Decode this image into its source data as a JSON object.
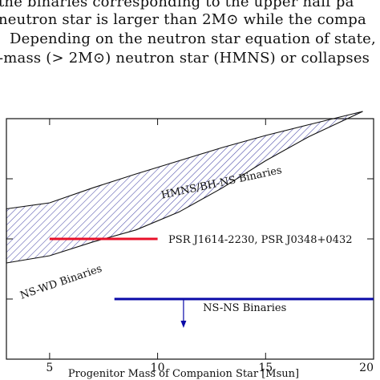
{
  "paper_text": {
    "line1": "the binaries corresponding to the upper half pa",
    "line2": "neutron star is larger than 2M⊙ while the compa",
    "line3": "Depending on the neutron star equation of state,",
    "line4": "-mass (> 2M⊙) neutron star (HMNS) or collapses"
  },
  "chart_data": {
    "type": "area",
    "xlabel": "Progenitor Mass of Companion Star [Msun]",
    "ylabel": "",
    "title": "",
    "xlim": [
      3,
      20
    ],
    "ylim": [
      0,
      4
    ],
    "x_ticks": [
      "5",
      "10",
      "15",
      "20"
    ],
    "hatch_region": {
      "upper": [
        [
          3,
          2.5
        ],
        [
          5,
          2.6
        ],
        [
          7,
          2.85
        ],
        [
          9,
          3.08
        ],
        [
          11,
          3.3
        ],
        [
          13,
          3.52
        ],
        [
          15,
          3.72
        ],
        [
          17,
          3.9
        ],
        [
          19.5,
          4.12
        ]
      ],
      "lower": [
        [
          3,
          1.6
        ],
        [
          5,
          1.72
        ],
        [
          7,
          1.95
        ],
        [
          9,
          2.15
        ],
        [
          11,
          2.45
        ],
        [
          13,
          2.85
        ],
        [
          15,
          3.3
        ],
        [
          17,
          3.7
        ],
        [
          19.5,
          4.12
        ]
      ]
    },
    "lines": [
      {
        "label": "PSR J1614-2230, PSR J0348+0432",
        "color": "#e8102a",
        "x": [
          5,
          10
        ],
        "y": 2.0
      },
      {
        "label": "NS-NS Binaries",
        "color": "#0a0aa8",
        "x": [
          8,
          20
        ],
        "y": 1.0,
        "upper_limit": true,
        "arrow_x": 11.2
      }
    ],
    "annotations": {
      "upper": "HMNS/BH-NS Binaries",
      "lower": "NS-WD Binaries",
      "red": "PSR J1614-2230, PSR J0348+0432",
      "blue": "NS-NS Binaries"
    },
    "colors": {
      "hatch": "#4a4aa8",
      "outline": "#111111"
    }
  }
}
